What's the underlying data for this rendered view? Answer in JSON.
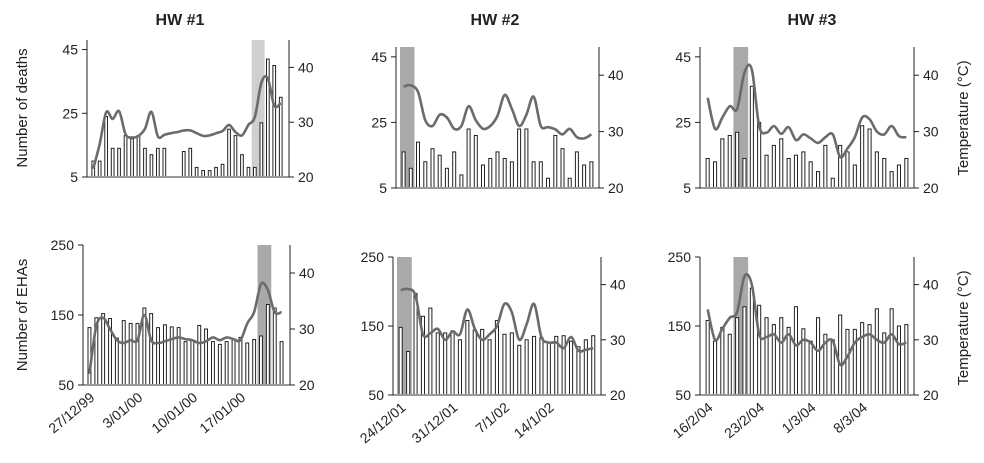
{
  "chart_data": [
    {
      "type": "bar+line",
      "panel": "HW #1 deaths",
      "title": "HW #1",
      "ylabel": "Number of deaths",
      "y2label": "",
      "ylim": [
        5,
        48
      ],
      "y2lim": [
        20,
        45
      ],
      "yticks": [
        "5",
        "25",
        "45"
      ],
      "y2ticks": [
        "20",
        "30",
        "40"
      ],
      "heatwave_days": [
        25,
        26
      ],
      "bars": [
        10,
        10,
        24,
        14,
        14,
        18,
        17,
        18,
        14,
        12,
        14,
        14,
        0,
        0,
        13,
        14,
        8,
        7,
        7,
        8,
        9,
        20,
        18,
        12,
        8,
        8,
        22,
        42,
        40,
        30
      ],
      "temperature": [
        21.5,
        26.0,
        31.8,
        30.6,
        32.0,
        27.8,
        27.2,
        27.5,
        28.8,
        31.9,
        27.4,
        27.7,
        28.0,
        28.2,
        28.5,
        28.5,
        28.0,
        27.5,
        27.6,
        28.0,
        28.4,
        29.5,
        28.2,
        27.6,
        29.5,
        31.0,
        37.2,
        38.0,
        33.0,
        33.5
      ]
    },
    {
      "type": "bar+line",
      "panel": "HW #2 deaths",
      "title": "HW #2",
      "ylabel": "",
      "y2label": "",
      "ylim": [
        5,
        48
      ],
      "y2lim": [
        20,
        45
      ],
      "yticks": [
        "5",
        "25",
        "45"
      ],
      "y2ticks": [
        "20",
        "30",
        "40"
      ],
      "heatwave_days": [
        0,
        1
      ],
      "bars": [
        16,
        11,
        19,
        13,
        17,
        15,
        11,
        16,
        9,
        23,
        21,
        12,
        14,
        16,
        14,
        13,
        23,
        23,
        13,
        13,
        8,
        21,
        17,
        8,
        16,
        12,
        13
      ],
      "temperature": [
        38.0,
        38.2,
        37.0,
        32.0,
        31.0,
        33.0,
        32.5,
        30.5,
        31.0,
        34.5,
        32.0,
        30.5,
        31.0,
        32.8,
        36.5,
        34.0,
        31.0,
        33.0,
        36.2,
        31.0,
        30.8,
        30.4,
        29.5,
        30.5,
        29.0,
        28.8,
        29.5
      ]
    },
    {
      "type": "bar+line",
      "panel": "HW #3 deaths",
      "title": "HW #3",
      "ylabel": "",
      "y2label": "Temperature (°C)",
      "ylim": [
        5,
        48
      ],
      "y2lim": [
        20,
        45
      ],
      "yticks": [
        "5",
        "25",
        "45"
      ],
      "y2ticks": [
        "20",
        "30",
        "40"
      ],
      "heatwave_days": [
        4,
        5
      ],
      "bars": [
        14,
        13,
        20,
        21,
        22,
        14,
        36,
        25,
        15,
        18,
        20,
        14,
        15,
        16,
        13,
        10,
        18,
        8,
        18,
        16,
        12,
        24,
        23,
        16,
        14,
        10,
        12,
        14
      ],
      "temperature": [
        36.0,
        30.5,
        32.5,
        34.5,
        34.0,
        40.5,
        41.0,
        31.0,
        29.8,
        31.0,
        29.6,
        30.8,
        28.5,
        29.5,
        28.8,
        28.0,
        29.0,
        29.5,
        25.5,
        27.0,
        29.0,
        32.5,
        32.2,
        30.0,
        29.5,
        31.0,
        29.2,
        29.0
      ]
    },
    {
      "type": "bar+line",
      "panel": "HW #1 EHAs",
      "title": "",
      "ylabel": "Number of EHAs",
      "y2label": "",
      "ylim": [
        50,
        250
      ],
      "y2lim": [
        20,
        45
      ],
      "yticks": [
        "50",
        "150",
        "250"
      ],
      "y2ticks": [
        "20",
        "30",
        "40"
      ],
      "heatwave_days": [
        25,
        26
      ],
      "categories": [
        "27/12/99",
        "3/01/00",
        "10/01/00",
        "17/01/00"
      ],
      "bars": [
        132,
        146,
        152,
        145,
        117,
        142,
        138,
        138,
        160,
        152,
        132,
        136,
        133,
        132,
        112,
        113,
        135,
        130,
        112,
        108,
        112,
        115,
        118,
        110,
        115,
        120,
        165,
        160,
        112
      ],
      "temperature": [
        22.0,
        30.5,
        32.0,
        30.0,
        28.0,
        27.5,
        28.0,
        28.0,
        32.5,
        28.0,
        27.5,
        27.8,
        28.2,
        28.5,
        28.2,
        28.0,
        27.5,
        27.8,
        28.5,
        28.0,
        28.5,
        28.2,
        28.0,
        31.0,
        33.0,
        38.0,
        37.0,
        33.0,
        33.0
      ]
    },
    {
      "type": "bar+line",
      "panel": "HW #2 EHAs",
      "title": "",
      "ylabel": "",
      "y2label": "",
      "ylim": [
        50,
        250
      ],
      "y2lim": [
        20,
        45
      ],
      "yticks": [
        "50",
        "150",
        "250"
      ],
      "y2ticks": [
        "20",
        "30",
        "40"
      ],
      "heatwave_days": [
        0,
        1
      ],
      "categories": [
        "24/12/01",
        "31/12/01",
        "7/1/02",
        "14/1/02"
      ],
      "bars": [
        148,
        113,
        197,
        164,
        176,
        140,
        140,
        143,
        130,
        158,
        144,
        145,
        130,
        158,
        138,
        140,
        122,
        130,
        135,
        133,
        126,
        135,
        136,
        128,
        120,
        130,
        136
      ],
      "temperature": [
        39.0,
        39.2,
        38.0,
        31.0,
        31.2,
        32.0,
        30.0,
        31.5,
        31.0,
        35.5,
        32.0,
        30.0,
        31.0,
        32.5,
        36.5,
        35.0,
        30.0,
        32.8,
        36.5,
        30.5,
        29.5,
        29.5,
        28.5,
        30.5,
        28.0,
        28.2,
        28.5
      ]
    },
    {
      "type": "bar+line",
      "panel": "HW #3 EHAs",
      "title": "",
      "ylabel": "",
      "y2label": "Temperature (°C)",
      "ylim": [
        50,
        250
      ],
      "y2lim": [
        20,
        45
      ],
      "yticks": [
        "50",
        "150",
        "250"
      ],
      "y2ticks": [
        "20",
        "30",
        "40"
      ],
      "heatwave_days": [
        4,
        5
      ],
      "categories": [
        "16/2/04",
        "23/2/04",
        "1/3/04",
        "8/3/04"
      ],
      "bars": [
        158,
        128,
        148,
        138,
        162,
        178,
        205,
        180,
        162,
        152,
        162,
        148,
        178,
        146,
        128,
        162,
        138,
        130,
        166,
        145,
        145,
        155,
        152,
        175,
        140,
        175,
        150,
        152
      ],
      "temperature": [
        35.5,
        30.0,
        32.0,
        34.0,
        35.0,
        41.5,
        40.0,
        31.0,
        30.5,
        31.0,
        29.5,
        31.0,
        29.0,
        30.0,
        29.5,
        28.0,
        29.5,
        29.8,
        25.5,
        27.0,
        29.5,
        30.5,
        31.0,
        30.0,
        29.5,
        31.0,
        29.2,
        29.5
      ]
    }
  ]
}
